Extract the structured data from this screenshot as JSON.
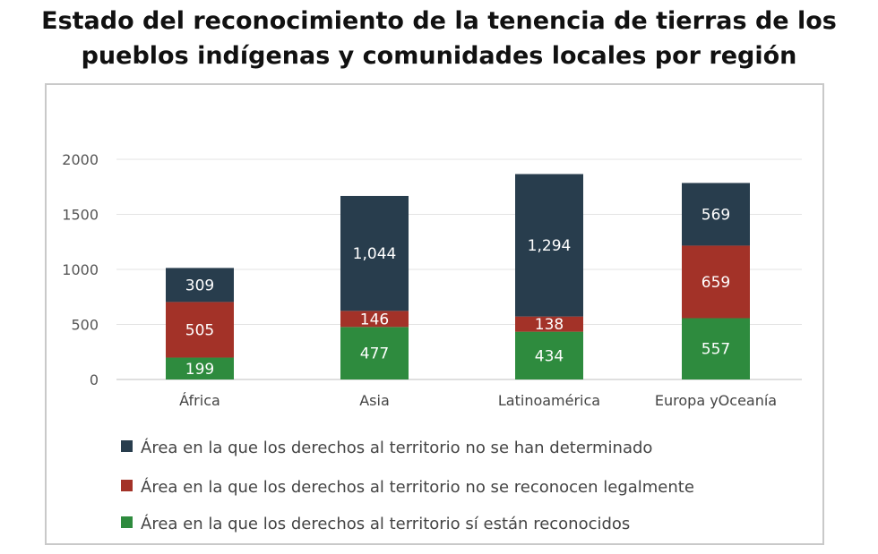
{
  "chart_data": {
    "type": "bar",
    "stacked": true,
    "title": "Estado del reconocimiento de la tenencia de tierras de los pueblos indígenas y comunidades locales por región",
    "title_lines": [
      "Estado del reconocimiento de la tenencia de tierras de los",
      "pueblos indígenas y comunidades locales por región"
    ],
    "categories": [
      "África",
      "Asia",
      "Latinoamérica",
      "Europa yOceanía"
    ],
    "series": [
      {
        "name": "Área en la que los derechos al territorio sí están reconocidos",
        "color": "#2e8b3e",
        "values": [
          199,
          477,
          434,
          557
        ],
        "labels": [
          "199",
          "477",
          "434",
          "557"
        ]
      },
      {
        "name": "Área en la que los derechos al territorio no se reconocen legalmente",
        "color": "#a33228",
        "values": [
          505,
          146,
          138,
          659
        ],
        "labels": [
          "505",
          "146",
          "138",
          "659"
        ]
      },
      {
        "name": "Área en la que los derechos al territorio no se han determinado",
        "color": "#283d4d",
        "values": [
          309,
          1044,
          1294,
          569
        ],
        "labels": [
          "309",
          "1,044",
          "1,294",
          "569"
        ]
      }
    ],
    "legend_order": [
      2,
      1,
      0
    ],
    "yticks": [
      "2000",
      "1500",
      "1000",
      "500",
      "0"
    ],
    "ylim": [
      0,
      2000
    ],
    "xlabel": "",
    "ylabel": "",
    "grid": true,
    "legend_position": "bottom"
  }
}
